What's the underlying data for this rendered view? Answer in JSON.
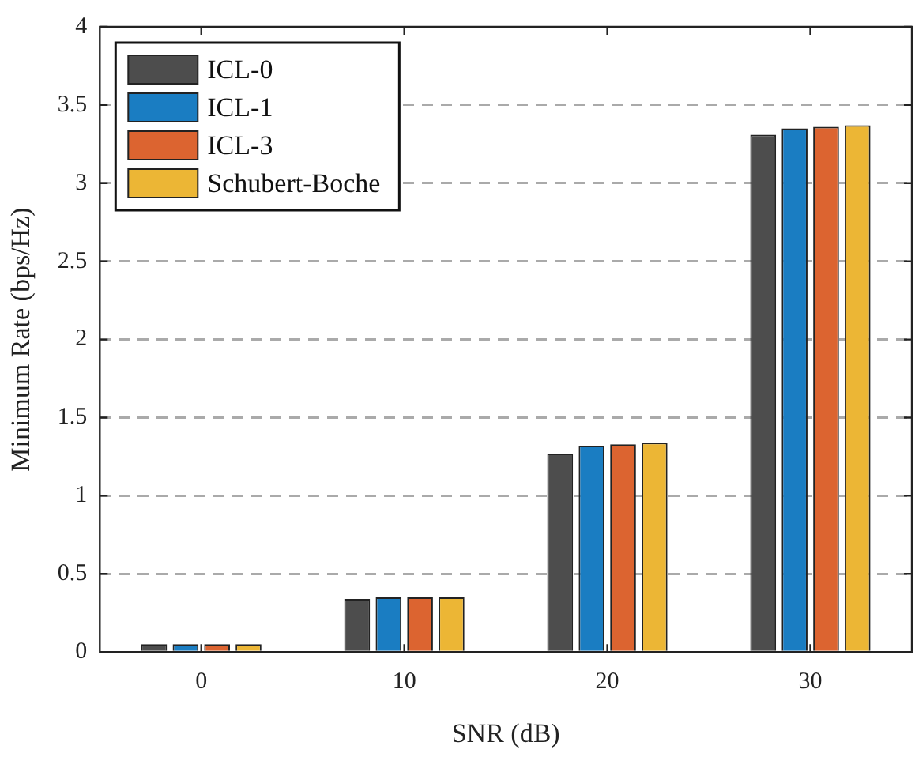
{
  "chart_data": {
    "type": "bar",
    "xlabel": "SNR (dB)",
    "ylabel": "Minimum Rate (bps/Hz)",
    "categories": [
      "0",
      "10",
      "20",
      "30"
    ],
    "series": [
      {
        "name": "ICL-0",
        "color": "#4d4d4d",
        "values": [
          0.05,
          0.34,
          1.27,
          3.31
        ]
      },
      {
        "name": "ICL-1",
        "color": "#1a7dc2",
        "values": [
          0.05,
          0.35,
          1.32,
          3.35
        ]
      },
      {
        "name": "ICL-3",
        "color": "#dc6430",
        "values": [
          0.05,
          0.35,
          1.33,
          3.36
        ]
      },
      {
        "name": "Schubert-Boche",
        "color": "#ecb635",
        "values": [
          0.05,
          0.35,
          1.34,
          3.37
        ]
      }
    ],
    "ylim": [
      0,
      4
    ],
    "yticks": [
      0,
      0.5,
      1,
      1.5,
      2,
      2.5,
      3,
      3.5,
      4
    ],
    "grid": "y",
    "legend": "top left"
  }
}
